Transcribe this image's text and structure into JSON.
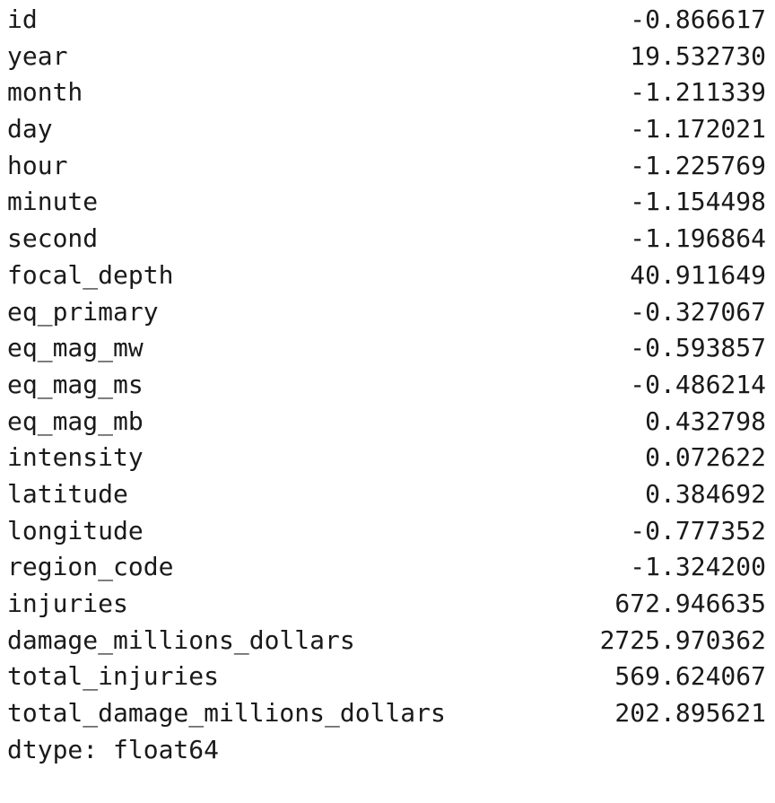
{
  "series": {
    "rows": [
      {
        "index": "id",
        "value": "-0.866617"
      },
      {
        "index": "year",
        "value": "19.532730"
      },
      {
        "index": "month",
        "value": "-1.211339"
      },
      {
        "index": "day",
        "value": "-1.172021"
      },
      {
        "index": "hour",
        "value": "-1.225769"
      },
      {
        "index": "minute",
        "value": "-1.154498"
      },
      {
        "index": "second",
        "value": "-1.196864"
      },
      {
        "index": "focal_depth",
        "value": "40.911649"
      },
      {
        "index": "eq_primary",
        "value": "-0.327067"
      },
      {
        "index": "eq_mag_mw",
        "value": "-0.593857"
      },
      {
        "index": "eq_mag_ms",
        "value": "-0.486214"
      },
      {
        "index": "eq_mag_mb",
        "value": "0.432798"
      },
      {
        "index": "intensity",
        "value": "0.072622"
      },
      {
        "index": "latitude",
        "value": "0.384692"
      },
      {
        "index": "longitude",
        "value": "-0.777352"
      },
      {
        "index": "region_code",
        "value": "-1.324200"
      },
      {
        "index": "injuries",
        "value": "672.946635"
      },
      {
        "index": "damage_millions_dollars",
        "value": "2725.970362"
      },
      {
        "index": "total_injuries",
        "value": "569.624067"
      },
      {
        "index": "total_damage_millions_dollars",
        "value": "202.895621"
      }
    ],
    "dtype_line": "dtype: float64"
  }
}
